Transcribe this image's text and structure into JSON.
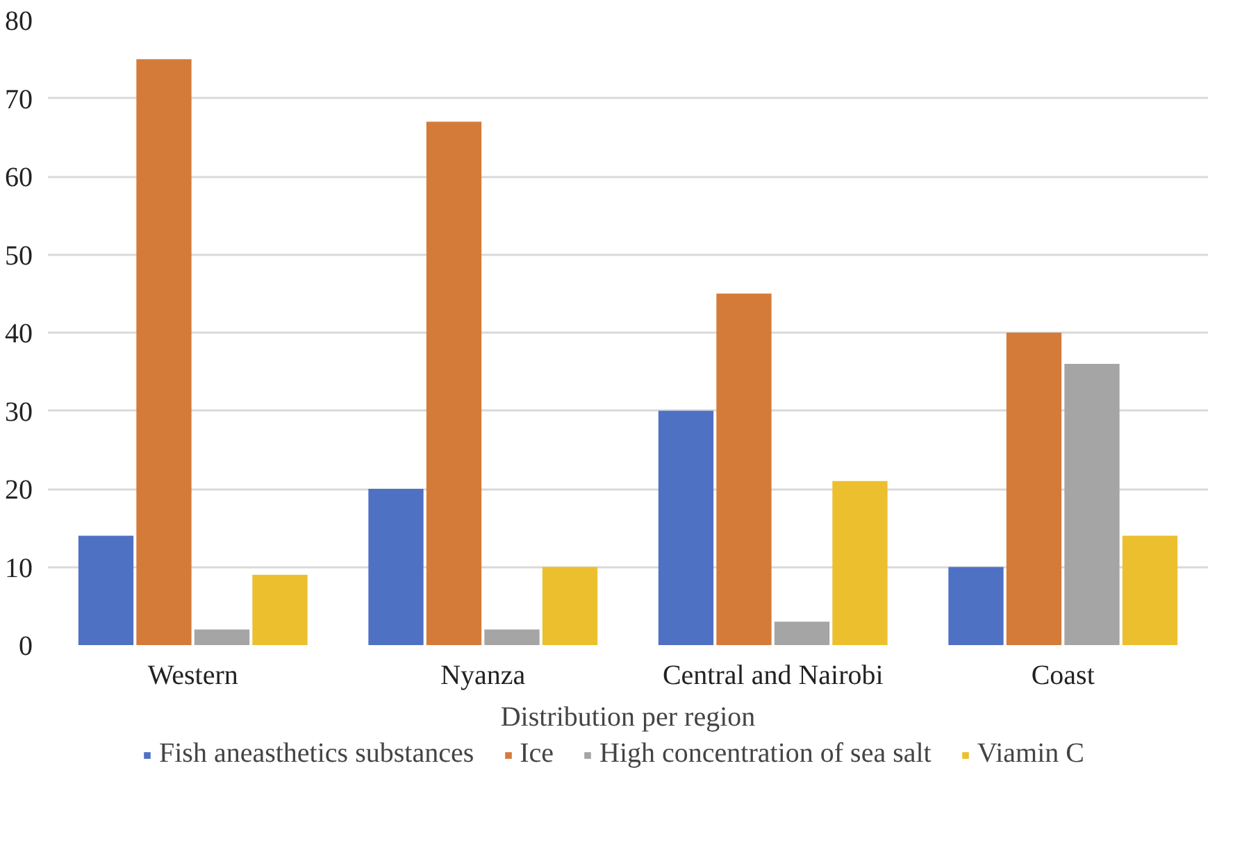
{
  "chart_data": {
    "type": "bar",
    "xlabel": "Distribution per region",
    "categories": [
      "Western",
      "Nyanza",
      "Central and Nairobi",
      "Coast"
    ],
    "series": [
      {
        "name": "Fish aneasthetics substances",
        "color": "#4f71c4",
        "values": [
          14,
          20,
          30,
          10
        ]
      },
      {
        "name": "Ice",
        "color": "#d57b3a",
        "values": [
          75,
          67,
          45,
          40
        ]
      },
      {
        "name": "High concentration of sea salt",
        "color": "#a5a5a5",
        "values": [
          2,
          2,
          3,
          36
        ]
      },
      {
        "name": "Viamin C",
        "color": "#ecbf2e",
        "values": [
          9,
          10,
          21,
          14
        ]
      }
    ],
    "ylim": [
      0,
      80
    ],
    "yticks": [
      0,
      10,
      20,
      30,
      40,
      50,
      60,
      70,
      80
    ],
    "grid": "y",
    "legend": "bottom"
  }
}
